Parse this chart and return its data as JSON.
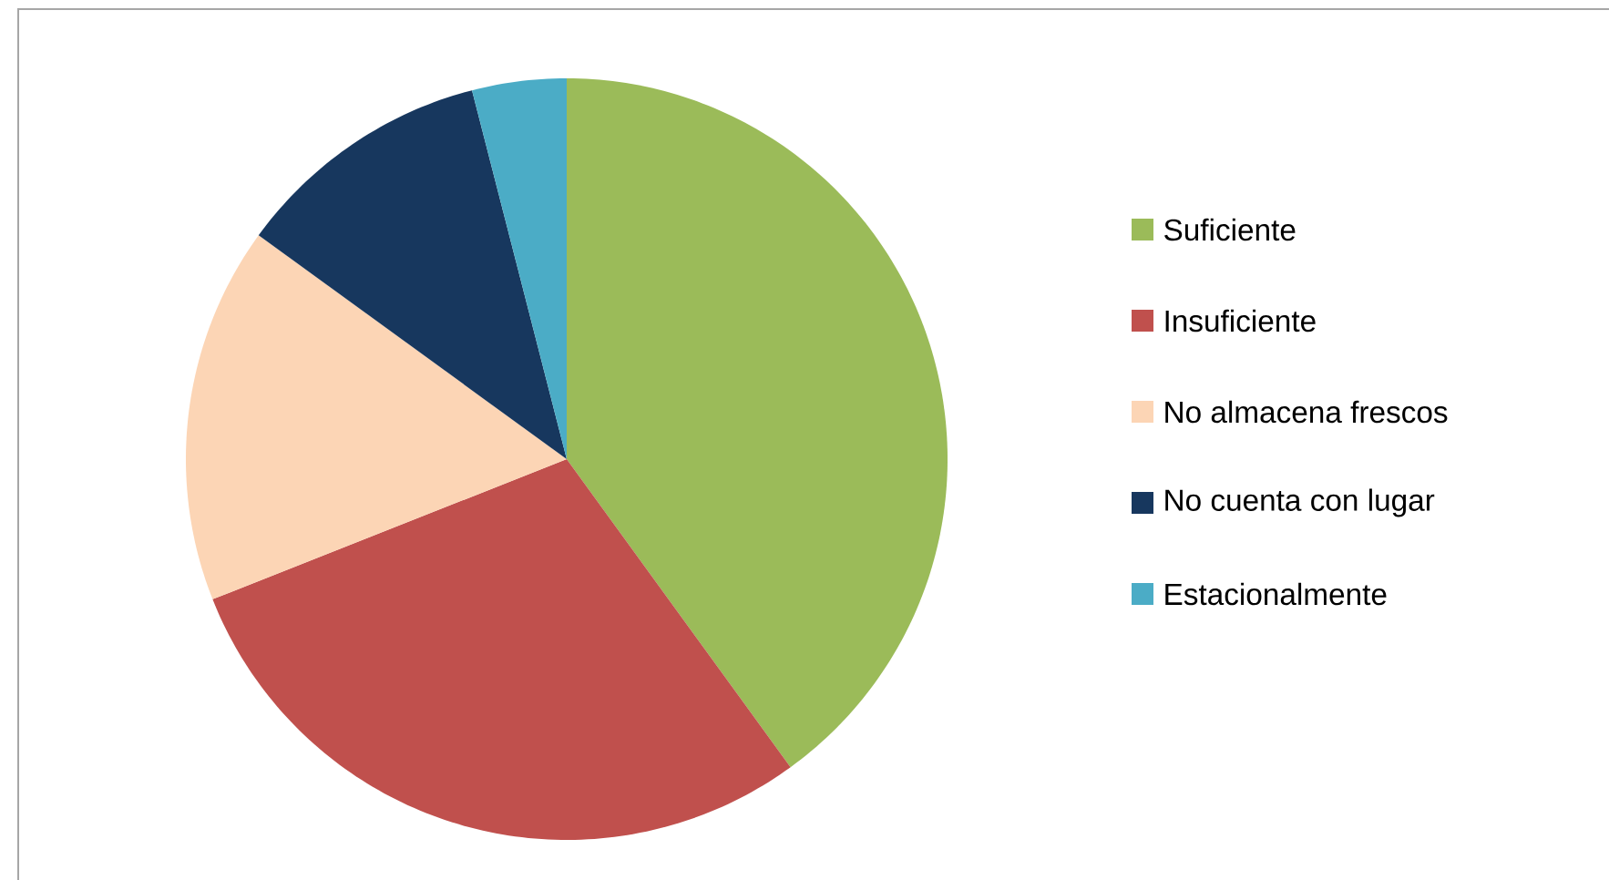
{
  "chart_data": {
    "type": "pie",
    "categories": [
      "Suficiente",
      "Insuficiente",
      "No almacena frescos",
      "No cuenta con lugar",
      "Estacionalmente"
    ],
    "values": [
      40,
      29,
      16,
      11,
      4
    ],
    "colors": [
      "#9bbb59",
      "#c0504d",
      "#fcd5b5",
      "#17375e",
      "#4bacc6"
    ],
    "legend": "right"
  }
}
